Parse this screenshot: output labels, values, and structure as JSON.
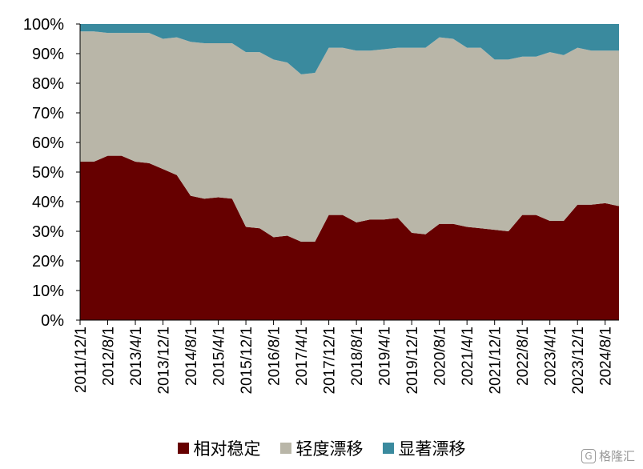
{
  "chart_data": {
    "type": "area",
    "stacked": true,
    "percent": true,
    "ylim": [
      0,
      100
    ],
    "yticks": [
      "0%",
      "10%",
      "20%",
      "30%",
      "40%",
      "50%",
      "60%",
      "70%",
      "80%",
      "90%",
      "100%"
    ],
    "xtick_labels": [
      "2011/12/1",
      "2012/8/1",
      "2013/4/1",
      "2013/12/1",
      "2014/8/1",
      "2015/4/1",
      "2015/12/1",
      "2016/8/1",
      "2017/4/1",
      "2017/12/1",
      "2018/8/1",
      "2019/4/1",
      "2019/12/1",
      "2020/8/1",
      "2021/4/1",
      "2021/12/1",
      "2022/8/1",
      "2023/4/1",
      "2023/12/1",
      "2024/8/1"
    ],
    "x": [
      "2011/12/1",
      "2012/4/1",
      "2012/8/1",
      "2012/12/1",
      "2013/4/1",
      "2013/8/1",
      "2013/12/1",
      "2014/4/1",
      "2014/8/1",
      "2014/12/1",
      "2015/4/1",
      "2015/8/1",
      "2015/12/1",
      "2016/4/1",
      "2016/8/1",
      "2016/12/1",
      "2017/4/1",
      "2017/8/1",
      "2017/12/1",
      "2018/4/1",
      "2018/8/1",
      "2018/12/1",
      "2019/4/1",
      "2019/8/1",
      "2019/12/1",
      "2020/4/1",
      "2020/8/1",
      "2020/12/1",
      "2021/4/1",
      "2021/8/1",
      "2021/12/1",
      "2022/4/1",
      "2022/8/1",
      "2022/12/1",
      "2023/4/1",
      "2023/8/1",
      "2023/12/1",
      "2024/4/1",
      "2024/8/1",
      "2024/12/1"
    ],
    "series": [
      {
        "name": "相对稳定",
        "color": "#660000",
        "values": [
          53.5,
          53.5,
          55.5,
          55.5,
          53.5,
          53,
          51,
          49,
          42,
          41,
          41.5,
          41,
          31.5,
          31,
          28,
          28.5,
          26.5,
          26.5,
          35.5,
          35.5,
          33,
          34,
          34,
          34.5,
          29.5,
          29,
          32.5,
          32.5,
          31.5,
          31,
          30.5,
          30,
          35.5,
          35.5,
          33.5,
          33.5,
          39,
          39,
          39.5,
          38.5
        ]
      },
      {
        "name": "轻度漂移",
        "color": "#b9b6a8",
        "values": [
          44,
          44,
          41.5,
          41.5,
          43.5,
          44,
          44,
          46.5,
          52,
          52.5,
          52,
          52.5,
          59,
          59.5,
          60,
          58.5,
          56.5,
          57,
          56.5,
          56.5,
          58,
          57,
          57.5,
          57.5,
          62.5,
          63,
          63,
          62.5,
          60.5,
          61,
          57.5,
          58,
          53.5,
          53.5,
          57,
          56,
          53,
          52,
          51.5,
          52.5
        ]
      },
      {
        "name": "显著漂移",
        "color": "#3a8a9e",
        "values": [
          2.5,
          2.5,
          3,
          3,
          3,
          3,
          5,
          4.5,
          6,
          6.5,
          6.5,
          6.5,
          9.5,
          9.5,
          12,
          13,
          17,
          16.5,
          8,
          8,
          9,
          9,
          8.5,
          8,
          8,
          8,
          4.5,
          5,
          8,
          8,
          12,
          12,
          11,
          11,
          9.5,
          10.5,
          8,
          9,
          9,
          9
        ]
      }
    ]
  },
  "legend": {
    "items": [
      {
        "label": "相对稳定",
        "color": "#660000"
      },
      {
        "label": "轻度漂移",
        "color": "#b9b6a8"
      },
      {
        "label": "显著漂移",
        "color": "#3a8a9e"
      }
    ]
  },
  "watermark": {
    "text": "格隆汇",
    "logo_glyph": "G"
  }
}
